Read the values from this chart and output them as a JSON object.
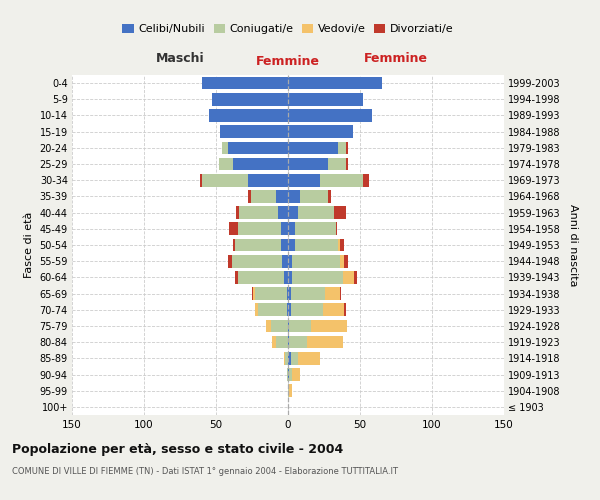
{
  "age_groups": [
    "100+",
    "95-99",
    "90-94",
    "85-89",
    "80-84",
    "75-79",
    "70-74",
    "65-69",
    "60-64",
    "55-59",
    "50-54",
    "45-49",
    "40-44",
    "35-39",
    "30-34",
    "25-29",
    "20-24",
    "15-19",
    "10-14",
    "5-9",
    "0-4"
  ],
  "birth_years": [
    "≤ 1903",
    "1904-1908",
    "1909-1913",
    "1914-1918",
    "1919-1923",
    "1924-1928",
    "1929-1933",
    "1934-1938",
    "1939-1943",
    "1944-1948",
    "1949-1953",
    "1954-1958",
    "1959-1963",
    "1964-1968",
    "1969-1973",
    "1974-1978",
    "1979-1983",
    "1984-1988",
    "1989-1993",
    "1994-1998",
    "1999-2003"
  ],
  "male": {
    "celibe": [
      0,
      0,
      0,
      0,
      0,
      0,
      1,
      1,
      3,
      4,
      5,
      5,
      7,
      8,
      28,
      38,
      42,
      47,
      55,
      53,
      60
    ],
    "coniugato": [
      0,
      0,
      1,
      2,
      8,
      12,
      20,
      22,
      32,
      35,
      32,
      30,
      27,
      18,
      32,
      10,
      4,
      0,
      0,
      0,
      0
    ],
    "vedovo": [
      0,
      0,
      0,
      1,
      3,
      3,
      2,
      1,
      0,
      0,
      0,
      0,
      0,
      0,
      0,
      0,
      0,
      0,
      0,
      0,
      0
    ],
    "divorziato": [
      0,
      0,
      0,
      0,
      0,
      0,
      0,
      1,
      2,
      3,
      1,
      6,
      2,
      2,
      1,
      0,
      0,
      0,
      0,
      0,
      0
    ]
  },
  "female": {
    "nubile": [
      0,
      0,
      1,
      2,
      1,
      1,
      2,
      2,
      3,
      3,
      5,
      5,
      7,
      8,
      22,
      28,
      35,
      45,
      58,
      52,
      65
    ],
    "coniugata": [
      0,
      1,
      2,
      5,
      12,
      15,
      22,
      24,
      35,
      33,
      30,
      28,
      25,
      20,
      30,
      12,
      5,
      0,
      0,
      0,
      0
    ],
    "vedova": [
      0,
      2,
      5,
      15,
      25,
      25,
      15,
      10,
      8,
      3,
      1,
      0,
      0,
      0,
      0,
      0,
      0,
      0,
      0,
      0,
      0
    ],
    "divorziata": [
      0,
      0,
      0,
      0,
      0,
      0,
      1,
      1,
      2,
      3,
      3,
      1,
      8,
      2,
      4,
      2,
      2,
      0,
      0,
      0,
      0
    ]
  },
  "colors": {
    "celibe": "#4472c4",
    "coniugato": "#b8cca0",
    "vedovo": "#f4c26a",
    "divorziato": "#c0392b"
  },
  "xlim": 150,
  "title": "Popolazione per età, sesso e stato civile - 2004",
  "subtitle": "COMUNE DI VILLE DI FIEMME (TN) - Dati ISTAT 1° gennaio 2004 - Elaborazione TUTTITALIA.IT",
  "legend_labels": [
    "Celibi/Nubili",
    "Coniugati/e",
    "Vedovi/e",
    "Divorziati/e"
  ],
  "xlabel_left": "Maschi",
  "xlabel_right": "Femmine",
  "ylabel_left": "Fasce di età",
  "ylabel_right": "Anni di nascita",
  "bg_color": "#f0f0eb",
  "plot_bg": "#ffffff"
}
